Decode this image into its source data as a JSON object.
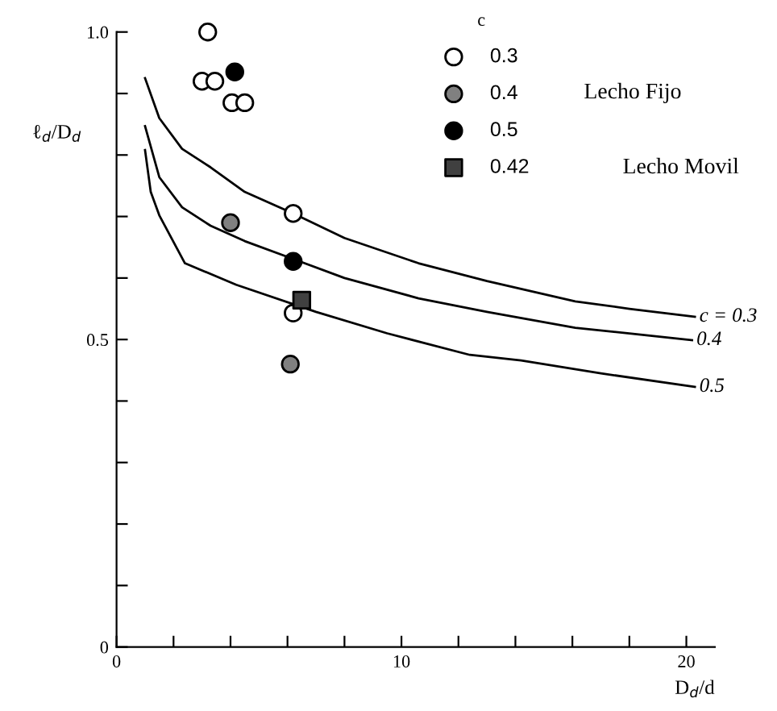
{
  "chart_data": {
    "type": "scatter",
    "xlabel": "D$_{d}$/d",
    "ylabel": "ℓ$_{d}$/D$_{d}$",
    "legend_title": "c",
    "xlim": [
      0,
      21
    ],
    "ylim": [
      0,
      1.0
    ],
    "xticks": [
      0,
      {
        "value": 2,
        "label": null
      },
      {
        "value": 4,
        "label": null
      },
      {
        "value": 6,
        "label": null
      },
      {
        "value": 8,
        "label": null
      },
      10,
      {
        "value": 12,
        "label": null
      },
      {
        "value": 14,
        "label": null
      },
      {
        "value": 16,
        "label": null
      },
      {
        "value": 18,
        "label": null
      },
      20
    ],
    "yticks": [
      0,
      {
        "value": 0.1,
        "label": null
      },
      {
        "value": 0.2,
        "label": null
      },
      {
        "value": 0.3,
        "label": null
      },
      {
        "value": 0.4,
        "label": null
      },
      0.5,
      {
        "value": 0.6,
        "label": null
      },
      {
        "value": 0.7,
        "label": null
      },
      {
        "value": 0.8,
        "label": null
      },
      {
        "value": 0.9,
        "label": null
      },
      {
        "value": 1.0,
        "label": "1.0"
      }
    ],
    "grid": false,
    "legend": "top right",
    "series": [
      {
        "name": "0.3",
        "marker": "circle",
        "color": "#ffffff",
        "x": [
          3.2,
          3.0,
          3.45,
          4.05,
          4.5,
          6.2,
          6.2
        ],
        "values": [
          1.0,
          0.92,
          0.92,
          0.885,
          0.885,
          0.705,
          0.543
        ]
      },
      {
        "name": "0.4",
        "marker": "circle",
        "color": "#808080",
        "x": [
          4.0,
          6.1
        ],
        "values": [
          0.69,
          0.46
        ]
      },
      {
        "name": "0.5",
        "marker": "circle",
        "color": "#000000",
        "x": [
          4.15,
          6.2
        ],
        "values": [
          0.935,
          0.627
        ]
      },
      {
        "name": "0.42",
        "marker": "square",
        "color": "#404040",
        "x": [
          6.5
        ],
        "values": [
          0.564
        ]
      },
      {
        "name": "c = 0.3",
        "type": "line",
        "marker": "none",
        "color": "#000000",
        "x": [
          1.0,
          1.5,
          2.3,
          3.3,
          4.5,
          6.2,
          8.0,
          10.6,
          13.0,
          16.1,
          18.0,
          20.3
        ],
        "values": [
          0.925,
          0.86,
          0.81,
          0.78,
          0.74,
          0.705,
          0.665,
          0.624,
          0.595,
          0.562,
          0.55,
          0.537
        ]
      },
      {
        "name": "0.4",
        "type": "line",
        "marker": "none",
        "color": "#000000",
        "x": [
          1.0,
          1.5,
          2.3,
          3.3,
          4.5,
          6.2,
          8.0,
          10.6,
          13.0,
          16.1,
          18.0,
          20.2
        ],
        "values": [
          0.847,
          0.764,
          0.715,
          0.685,
          0.66,
          0.631,
          0.6,
          0.567,
          0.545,
          0.519,
          0.51,
          0.499
        ]
      },
      {
        "name": "0.5",
        "type": "line",
        "marker": "none",
        "color": "#000000",
        "x": [
          1.0,
          1.2,
          1.5,
          2.4,
          4.2,
          7.0,
          9.5,
          12.4,
          14.2,
          17.0,
          20.3
        ],
        "values": [
          0.808,
          0.74,
          0.702,
          0.624,
          0.589,
          0.545,
          0.51,
          0.475,
          0.466,
          0.445,
          0.423
        ]
      }
    ],
    "annotations": [
      "Lecho Fijo",
      "Lecho Movil"
    ]
  }
}
